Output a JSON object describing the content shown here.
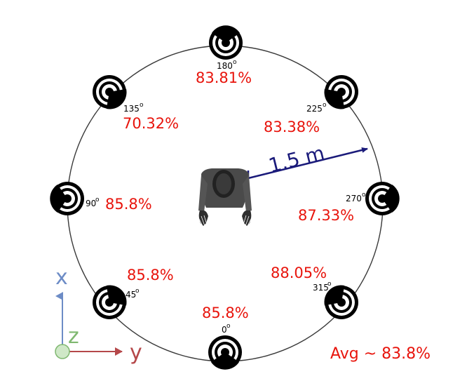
{
  "distance_label": "1.5 m",
  "average_label": "Avg ~ 83.8%",
  "axes": {
    "x_label": "x",
    "y_label": "y",
    "z_label": "z"
  },
  "colors": {
    "percent_text": "#e8140c",
    "distance_arrow": "#1a1a7a",
    "x_axis": "#6d8cc6",
    "y_axis": "#b5484a",
    "z_axis": "#7fb870",
    "circle": "#3a3a3a",
    "person": "#4a4a4a"
  },
  "speakers": [
    {
      "angle": "0",
      "accuracy": "85.8%"
    },
    {
      "angle": "45",
      "accuracy": "85.8%"
    },
    {
      "angle": "90",
      "accuracy": "85.8%"
    },
    {
      "angle": "135",
      "accuracy": "70.32%"
    },
    {
      "angle": "180",
      "accuracy": "83.81%"
    },
    {
      "angle": "225",
      "accuracy": "83.38%"
    },
    {
      "angle": "270",
      "accuracy": "87.33%"
    },
    {
      "angle": "315",
      "accuracy": "88.05%"
    }
  ],
  "degree_symbol": "o",
  "icons": {
    "speaker": "speaker-icon",
    "person": "person-top-view-icon",
    "axes": "coordinate-axes-icon"
  }
}
